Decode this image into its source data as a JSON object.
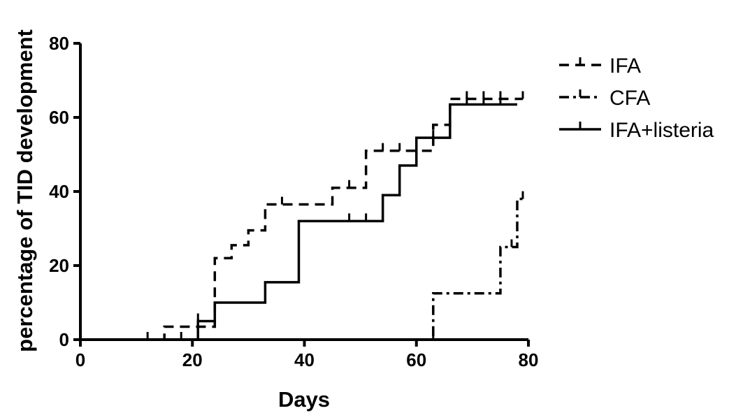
{
  "chart_data": {
    "type": "line",
    "step": true,
    "xlabel": "Days",
    "ylabel": "percentage of TID development",
    "xlim": [
      0,
      80
    ],
    "ylim": [
      0,
      80
    ],
    "xticks": [
      0,
      20,
      40,
      60,
      80
    ],
    "yticks": [
      0,
      20,
      40,
      60,
      80
    ],
    "grid": false,
    "legend_position": "top-right",
    "series": [
      {
        "name": "IFA",
        "dash": "dashed",
        "steps": [
          [
            0,
            0
          ],
          [
            15,
            3.5
          ],
          [
            24,
            22
          ],
          [
            27,
            25.5
          ],
          [
            30,
            29.5
          ],
          [
            33,
            36.5
          ],
          [
            45,
            41
          ],
          [
            51,
            51
          ],
          [
            63,
            58
          ],
          [
            66,
            65
          ],
          [
            79,
            65
          ]
        ],
        "censored": [
          [
            12,
            0
          ],
          [
            18,
            0
          ],
          [
            21,
            3.5
          ],
          [
            36,
            36.5
          ],
          [
            48,
            41
          ],
          [
            54,
            51
          ],
          [
            57,
            51
          ],
          [
            69,
            65
          ],
          [
            72,
            65
          ],
          [
            75,
            65
          ],
          [
            79,
            65
          ]
        ]
      },
      {
        "name": "CFA",
        "dash": "dash-dot",
        "steps": [
          [
            0,
            0
          ],
          [
            63,
            12.5
          ],
          [
            75,
            25
          ],
          [
            78,
            38
          ],
          [
            79,
            38
          ]
        ],
        "censored": [
          [
            63,
            0
          ],
          [
            77,
            25
          ],
          [
            79,
            38
          ]
        ]
      },
      {
        "name": "IFA+listeria",
        "dash": "solid",
        "steps": [
          [
            0,
            0
          ],
          [
            21,
            5
          ],
          [
            24,
            10
          ],
          [
            33,
            15.5
          ],
          [
            39,
            32
          ],
          [
            54,
            39
          ],
          [
            57,
            47
          ],
          [
            60,
            54.5
          ],
          [
            66,
            63.5
          ],
          [
            78,
            63.5
          ]
        ],
        "censored": [
          [
            21,
            5
          ],
          [
            48,
            32
          ],
          [
            51,
            32
          ],
          [
            63,
            54.5
          ],
          [
            69,
            63.5
          ],
          [
            72,
            63.5
          ],
          [
            75,
            63.5
          ]
        ]
      }
    ]
  }
}
